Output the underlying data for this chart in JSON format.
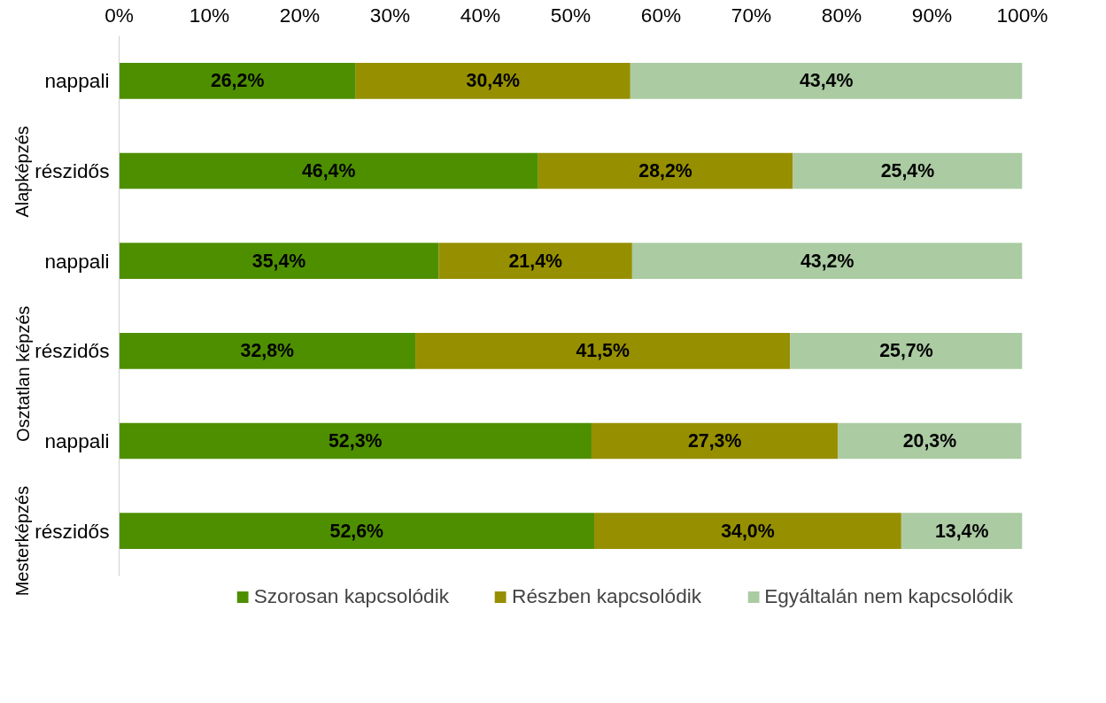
{
  "chart_data": {
    "type": "bar",
    "orientation": "horizontal",
    "stacked": true,
    "categories": [
      "nappali",
      "részidős",
      "nappali",
      "részidős",
      "nappali",
      "részidős"
    ],
    "annotations": [
      "Alapképzés",
      "Osztatlan képzés",
      "Mesterképzés"
    ],
    "series": [
      {
        "name": "Szorosan kapcsolódik",
        "color": "#4e8f00",
        "values": [
          26.2,
          46.4,
          35.4,
          32.8,
          52.3,
          52.6
        ],
        "value_labels": [
          "26,2%",
          "46,4%",
          "35,4%",
          "32,8%",
          "52,3%",
          "52,6%"
        ]
      },
      {
        "name": "Részben kapcsolódik",
        "color": "#968f00",
        "values": [
          30.4,
          28.2,
          21.4,
          41.5,
          27.3,
          34.0
        ],
        "value_labels": [
          "30,4%",
          "28,2%",
          "21,4%",
          "41,5%",
          "27,3%",
          "34,0%"
        ]
      },
      {
        "name": "Egyáltalán nem kapcsolódik",
        "color": "#abcba2",
        "values": [
          43.4,
          25.4,
          43.2,
          25.7,
          20.3,
          13.4
        ],
        "value_labels": [
          "43,4%",
          "25,4%",
          "43,2%",
          "25,7%",
          "20,3%",
          "13,4%"
        ]
      }
    ],
    "xlim": [
      0,
      100
    ],
    "xticks": [
      {
        "value": 0,
        "label": "0%"
      },
      {
        "value": 10,
        "label": "10%"
      },
      {
        "value": 20,
        "label": "20%"
      },
      {
        "value": 30,
        "label": "30%"
      },
      {
        "value": 40,
        "label": "40%"
      },
      {
        "value": 50,
        "label": "50%"
      },
      {
        "value": 60,
        "label": "60%"
      },
      {
        "value": 70,
        "label": "70%"
      },
      {
        "value": 80,
        "label": "80%"
      },
      {
        "value": 90,
        "label": "90%"
      },
      {
        "value": 100,
        "label": "100%"
      }
    ],
    "grid": false,
    "legend": "bottom"
  }
}
